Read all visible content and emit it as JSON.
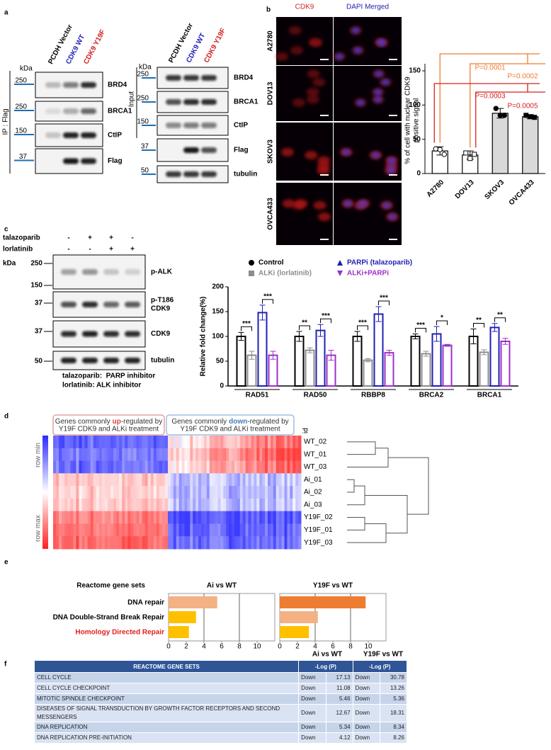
{
  "panel_labels": [
    "a",
    "b",
    "c",
    "d",
    "e",
    "f"
  ],
  "panel_a": {
    "kda": "kDa",
    "ip_label": "IP : Flag",
    "input_label": "Input",
    "lanes": [
      {
        "label": "PCDH Vector",
        "color": "#000000"
      },
      {
        "label": "CDK9 WT",
        "color": "#1f1fb4"
      },
      {
        "label": "CDK9 Y19F",
        "color": "#d42020"
      }
    ],
    "ip_blots": [
      {
        "marker": "250",
        "protein": "BRD4"
      },
      {
        "marker": "250",
        "protein": "BRCA1"
      },
      {
        "marker": "150",
        "protein": "CtIP"
      },
      {
        "marker": "37",
        "protein": "Flag"
      }
    ],
    "input_blots": [
      {
        "marker": "250",
        "protein": "BRD4"
      },
      {
        "marker": "250",
        "protein": "BRCA1"
      },
      {
        "marker": "150",
        "protein": "CtIP"
      },
      {
        "marker": "37",
        "protein": "Flag"
      },
      {
        "marker": "50",
        "protein": "tubulin"
      }
    ]
  },
  "panel_b": {
    "channels": [
      {
        "label": "CDK9",
        "color": "#d42020"
      },
      {
        "label": "DAPI Merged",
        "color": "#2020b0"
      }
    ],
    "cell_lines": [
      "A2780",
      "DOV13",
      "SKOV3",
      "OVCA433"
    ]
  },
  "panel_c": {
    "kda": "kDa",
    "treatments": [
      {
        "name": "talazoparib",
        "signs": [
          "-",
          "+",
          "+",
          "-"
        ]
      },
      {
        "name": "lorlatinib",
        "signs": [
          "-",
          "-",
          "+",
          "+"
        ]
      }
    ],
    "blots": [
      {
        "markers": [
          "250",
          "150"
        ],
        "protein": [
          "p-ALK"
        ]
      },
      {
        "markers": [
          "37"
        ],
        "protein": [
          "p-T186",
          "CDK9"
        ]
      },
      {
        "markers": [
          "37"
        ],
        "protein": [
          "CDK9"
        ]
      },
      {
        "markers": [
          "50"
        ],
        "protein": [
          "tubulin"
        ]
      }
    ],
    "notes": [
      "talazoparib:  PARP inhibitor",
      "lorlatinib: ALK inhibitor"
    ]
  },
  "panel_d": {
    "highlight_up": "#e04040",
    "highlight_down": "#4a7ab8",
    "box_up": {
      "line1": [
        "Genes commonly",
        "up",
        "-regulated by"
      ],
      "line2": "Y19F CDK9 and ALKi treatment"
    },
    "box_down": {
      "line1": [
        "Genes commonly",
        "down",
        "-regulated by"
      ],
      "line2": "Y19F CDK9 and ALKi treatment"
    },
    "colorbar": [
      "row min",
      "row max"
    ],
    "id_label": "id",
    "rows": [
      "WT_02",
      "WT_01",
      "WT_03",
      "Ai_01",
      "Ai_02",
      "Ai_03",
      "Y19F_02",
      "Y19F_01",
      "Y19F_03"
    ]
  },
  "panel_e": {
    "header": "Reactome gene sets"
  },
  "chart_data": [
    {
      "type": "bar",
      "ylabel": [
        "% of cell with nuclear CDK9",
        "positive signal"
      ],
      "categories": [
        "A2780",
        "DOV13",
        "SKOV3",
        "OVCA433"
      ],
      "values": [
        33,
        27,
        88,
        83
      ],
      "errors": [
        6,
        6,
        7,
        3
      ],
      "points": [
        [
          36,
          35,
          28
        ],
        [
          30,
          22,
          28
        ],
        [
          95,
          85,
          85
        ],
        [
          85,
          83,
          82
        ]
      ],
      "color": "#d9d9d9",
      "ylim": [
        0,
        150
      ],
      "yticks": [
        0,
        50,
        100,
        150
      ],
      "annotations": [
        {
          "text": "P=0.0001",
          "color": "#ed7d31"
        },
        {
          "text": "P=0.0002",
          "color": "#ed7d31"
        },
        {
          "text": "P=0.0003",
          "color": "#d42020"
        },
        {
          "text": "P=0.0005",
          "color": "#d42020"
        }
      ]
    },
    {
      "type": "grouped_bar",
      "ylabel": "Relative fold change(%)",
      "categories": [
        "RAD51",
        "RAD50",
        "RBBP8",
        "BRCA2",
        "BRCA1"
      ],
      "series": [
        {
          "name": "Control",
          "color": "#000000",
          "marker": "circle",
          "values": [
            100,
            100,
            100,
            100,
            100
          ],
          "errors": [
            8,
            10,
            10,
            5,
            15
          ]
        },
        {
          "name": "ALKi (lorlatinib)",
          "color": "#8c8c8c",
          "marker": "square",
          "values": [
            62,
            72,
            52,
            65,
            68
          ],
          "errors": [
            8,
            5,
            3,
            5,
            5
          ]
        },
        {
          "name": "PARPi (talazoparib)",
          "color": "#1f1fb4",
          "marker": "triangle",
          "values": [
            148,
            112,
            145,
            105,
            118
          ],
          "errors": [
            15,
            12,
            15,
            15,
            8
          ]
        },
        {
          "name": "ALKi+PARPi",
          "color": "#9b30c8",
          "marker": "triangle-down",
          "values": [
            62,
            62,
            67,
            82,
            90
          ],
          "errors": [
            8,
            10,
            5,
            2,
            6
          ]
        }
      ],
      "significance": [
        [
          "***",
          "***"
        ],
        [
          "**",
          "***"
        ],
        [
          "***",
          "***"
        ],
        [
          "***",
          "*"
        ],
        [
          "**",
          "**"
        ]
      ],
      "ylim": [
        0,
        200
      ],
      "yticks": [
        0,
        50,
        100,
        150,
        200
      ]
    },
    {
      "type": "hbar",
      "title": "Ai vs WT",
      "categories": [
        "DNA repair",
        "DNA Double-Strand Break Repair",
        "Homology Directed Repair"
      ],
      "category_colors": [
        "#000000",
        "#000000",
        "#e02020"
      ],
      "values": [
        5.5,
        3.1,
        2.3
      ],
      "colors": [
        "#f4b183",
        "#ffc000",
        "#ffc000"
      ],
      "xlim": [
        0,
        12
      ],
      "xticks": [
        0,
        2,
        4,
        6,
        8,
        10
      ],
      "grid_lines": [
        4,
        8
      ]
    },
    {
      "type": "hbar",
      "title": "Y19F vs WT",
      "values": [
        9.7,
        4.3,
        3.3
      ],
      "colors": [
        "#ed7d31",
        "#f4b183",
        "#ffc000"
      ],
      "xlim": [
        0,
        12
      ],
      "xticks": [
        0,
        2,
        4,
        6,
        8,
        10
      ],
      "grid_lines": [
        4,
        8
      ]
    }
  ],
  "table": {
    "group_headers": [
      "Ai vs WT",
      "Y19F vs WT"
    ],
    "columns": [
      "REACTOME GENE SETS",
      "-Log (P)",
      "-Log (P)"
    ],
    "rows": [
      [
        "CELL CYCLE",
        "Down",
        17.13,
        "Down",
        30.78
      ],
      [
        "CELL CYCLE CHECKPOINT",
        "Down",
        11.08,
        "Down",
        13.26
      ],
      [
        "MITOTIC SPINDLE CHECKPOINT",
        "Down",
        5.46,
        "Down",
        5.36
      ],
      [
        "DISEASES OF SIGNAL TRANSDUCTION BY GROWTH FACTOR RECEPTORS AND SECOND MESSENGERS",
        "Down",
        12.67,
        "Down",
        18.31
      ],
      [
        "DNA REPLICATION",
        "Down",
        5.34,
        "Down",
        8.34
      ],
      [
        "DNA REPLICATION PRE-INITIATION",
        "Down",
        4.12,
        "Down",
        8.26
      ]
    ]
  }
}
